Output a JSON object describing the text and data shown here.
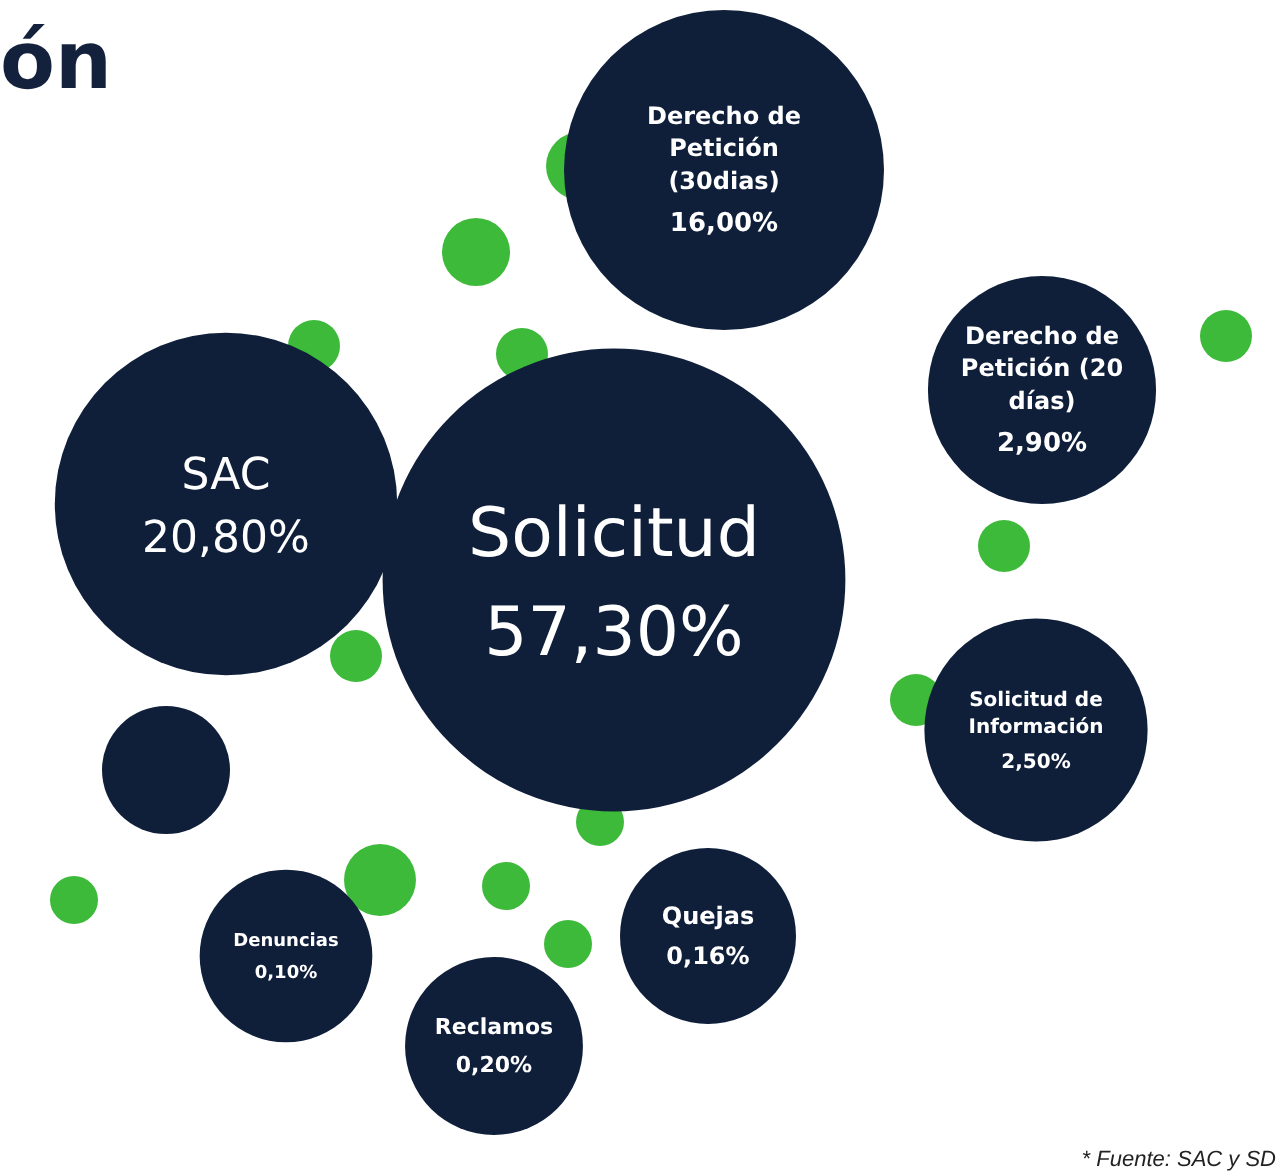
{
  "chart_data": {
    "type": "other",
    "title": "ón",
    "categories": [
      "Solicitud",
      "SAC",
      "Derecho de Petición (30dias)",
      "Derecho de Petición (20 días)",
      "Solicitud de Información",
      "Quejas",
      "Reclamos",
      "Denuncias"
    ],
    "values": [
      57.3,
      20.8,
      16.0,
      2.9,
      2.5,
      0.16,
      0.2,
      0.1
    ],
    "value_labels": [
      "57,30%",
      "20,80%",
      "16,00%",
      "2,90%",
      "2,50%",
      "0,16%",
      "0,20%",
      "0,10%"
    ],
    "color": "#0f1f3a",
    "annotations": [
      "* Fuente: SAC y SD"
    ]
  }
}
